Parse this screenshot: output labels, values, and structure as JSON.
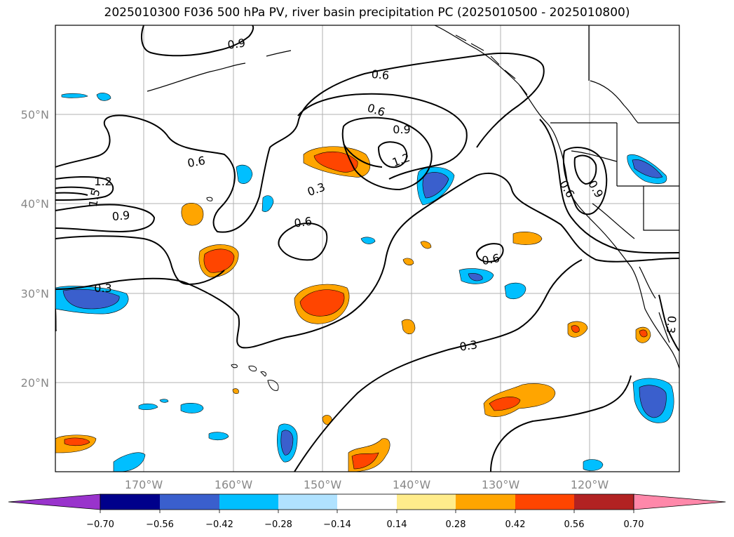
{
  "title": "2025010300 F036 500 hPa PV, river basin precipitation PC (2025010500 - 2025010800)",
  "map": {
    "lat_labels": [
      "50°N",
      "40°N",
      "30°N",
      "20°N"
    ],
    "lon_labels": [
      "170°W",
      "160°W",
      "150°W",
      "140°W",
      "130°W",
      "120°W"
    ],
    "contour_labels": [
      {
        "text": "0.9",
        "rot": -8
      },
      {
        "text": "0.6",
        "rot": 5
      },
      {
        "text": "0.6",
        "rot": 18
      },
      {
        "text": "0.9",
        "rot": 0
      },
      {
        "text": "1.2",
        "rot": -20
      },
      {
        "text": "0.6",
        "rot": -10
      },
      {
        "text": "1.2",
        "rot": 0
      },
      {
        "text": "1.5",
        "rot": -80
      },
      {
        "text": "0.9",
        "rot": -5
      },
      {
        "text": "0.3",
        "rot": -20
      },
      {
        "text": "0.6",
        "rot": -8
      },
      {
        "text": "0.3",
        "rot": 0
      },
      {
        "text": "0.6",
        "rot": -10
      },
      {
        "text": "0.3",
        "rot": -8
      },
      {
        "text": "0.6",
        "rot": 60
      },
      {
        "text": "0.9",
        "rot": 60
      },
      {
        "text": "0.3",
        "rot": 95
      }
    ]
  },
  "colorbar": {
    "ticks": [
      "−0.70",
      "−0.56",
      "−0.42",
      "−0.28",
      "−0.14",
      "0.14",
      "0.28",
      "0.42",
      "0.56",
      "0.70"
    ],
    "colors": [
      "#9933cc",
      "#00008b",
      "#3a5fcd",
      "#00bfff",
      "#b0e2ff",
      "#ffffff",
      "#ffec8b",
      "#ffa500",
      "#ff4500",
      "#b22222",
      "#ff88aa"
    ]
  }
}
